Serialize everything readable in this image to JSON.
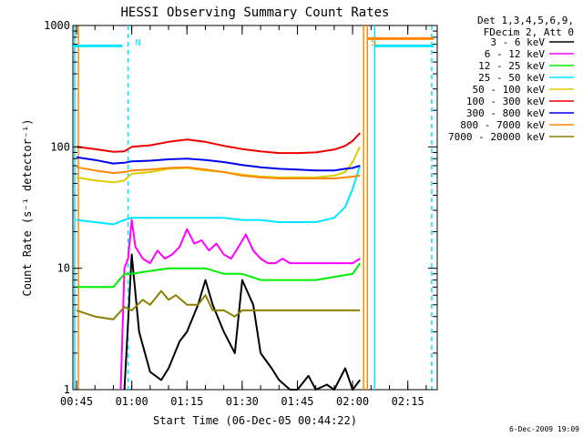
{
  "chart_data": {
    "type": "line",
    "title": "HESSI Observing Summary Count Rates",
    "xlabel": "Start Time (06-Dec-05 00:44:22)",
    "ylabel": "Count Rate (s⁻¹ detector⁻¹)",
    "x_scale": "time",
    "y_scale": "log",
    "xlim": [
      "00:44",
      "02:23"
    ],
    "ylim": [
      1,
      1000
    ],
    "x_ticks": [
      "00:45",
      "01:00",
      "01:15",
      "01:30",
      "01:45",
      "02:00",
      "02:15"
    ],
    "y_ticks": [
      "1",
      "10",
      "100",
      "1000"
    ],
    "legend_header": [
      "Det 1,3,4,5,6,9,",
      "FDecim 2, Att 0"
    ],
    "legend_position": "outside-right",
    "markers": [
      {
        "label": "N",
        "time": "00:59",
        "color": "#00e6ff"
      },
      {
        "label": "S",
        "time": "02:03",
        "color": "#ff8800"
      }
    ],
    "vertical_lines": [
      {
        "time": "00:44.5",
        "color": "#00e6ff",
        "style": "solid"
      },
      {
        "time": "00:45.5",
        "color": "#ff8800",
        "style": "solid"
      },
      {
        "time": "00:59",
        "color": "#00e6ff",
        "style": "dashed"
      },
      {
        "time": "02:03",
        "color": "#ff8800",
        "style": "solid"
      },
      {
        "time": "02:04",
        "color": "#ff8800",
        "style": "solid"
      },
      {
        "time": "02:06",
        "color": "#00e6ff",
        "style": "solid"
      },
      {
        "time": "02:21.5",
        "color": "#00e6ff",
        "style": "dashed"
      }
    ],
    "flag_segments": [
      {
        "color": "#00e6ff",
        "y": 680,
        "x": [
          "00:44",
          "00:57.5"
        ]
      },
      {
        "color": "#ff8800",
        "y": 780,
        "x": [
          "02:04",
          "02:22"
        ]
      },
      {
        "color": "#00e6ff",
        "y": 680,
        "x": [
          "02:06",
          "02:22"
        ]
      }
    ],
    "series": [
      {
        "name": "3 - 6 keV",
        "color": "#000000",
        "x": [
          "00:58",
          "01:00",
          "01:02",
          "01:05",
          "01:08",
          "01:10",
          "01:13",
          "01:15",
          "01:18",
          "01:20",
          "01:22",
          "01:25",
          "01:28",
          "01:30",
          "01:33",
          "01:35",
          "01:38",
          "01:40",
          "01:43",
          "01:45",
          "01:48",
          "01:50",
          "01:53",
          "01:55",
          "01:58",
          "02:00",
          "02:02"
        ],
        "values": [
          1.0,
          13,
          3,
          1.4,
          1.2,
          1.5,
          2.5,
          3,
          5,
          8,
          5,
          3,
          2,
          8,
          5,
          2,
          1.5,
          1.2,
          1.0,
          1.0,
          1.3,
          1.0,
          1.1,
          1.0,
          1.5,
          1.0,
          1.2
        ]
      },
      {
        "name": "6 - 12 keV",
        "color": "#ff00ff",
        "x": [
          "00:57",
          "00:58",
          "00:59",
          "01:00",
          "01:01",
          "01:03",
          "01:05",
          "01:07",
          "01:09",
          "01:11",
          "01:13",
          "01:15",
          "01:17",
          "01:19",
          "01:21",
          "01:23",
          "01:25",
          "01:27",
          "01:29",
          "01:31",
          "01:33",
          "01:35",
          "01:37",
          "01:39",
          "01:41",
          "01:43",
          "01:45",
          "01:48",
          "01:52",
          "01:56",
          "02:00",
          "02:02"
        ],
        "values": [
          1.0,
          10,
          12,
          25,
          15,
          12,
          11,
          14,
          12,
          13,
          15,
          21,
          16,
          17,
          14,
          16,
          13,
          12,
          15,
          19,
          14,
          12,
          11,
          11,
          12,
          11,
          11,
          11,
          11,
          11,
          11,
          12
        ]
      },
      {
        "name": "12 - 25 keV",
        "color": "#00ee00",
        "x": [
          "00:45",
          "00:50",
          "00:55",
          "00:58",
          "01:00",
          "01:05",
          "01:10",
          "01:15",
          "01:20",
          "01:25",
          "01:30",
          "01:35",
          "01:40",
          "01:45",
          "01:50",
          "01:55",
          "02:00",
          "02:02"
        ],
        "values": [
          7,
          7,
          7,
          9,
          9,
          9.5,
          10,
          10,
          10,
          9,
          9,
          8,
          8,
          8,
          8,
          8.5,
          9,
          11
        ]
      },
      {
        "name": "25 - 50 keV",
        "color": "#00e6ff",
        "x": [
          "00:45",
          "00:50",
          "00:55",
          "00:58",
          "01:00",
          "01:05",
          "01:10",
          "01:15",
          "01:20",
          "01:25",
          "01:30",
          "01:35",
          "01:40",
          "01:45",
          "01:50",
          "01:55",
          "01:58",
          "02:00",
          "02:02"
        ],
        "values": [
          25,
          24,
          23,
          25,
          26,
          26,
          26,
          26,
          26,
          26,
          25,
          25,
          24,
          24,
          24,
          26,
          32,
          45,
          70
        ]
      },
      {
        "name": "50 - 100 keV",
        "color": "#ddcc00",
        "x": [
          "00:45",
          "00:50",
          "00:55",
          "00:58",
          "01:00",
          "01:05",
          "01:10",
          "01:15",
          "01:20",
          "01:25",
          "01:30",
          "01:35",
          "01:40",
          "01:45",
          "01:50",
          "01:55",
          "01:58",
          "02:00",
          "02:02"
        ],
        "values": [
          56,
          53,
          51,
          53,
          60,
          62,
          66,
          67,
          64,
          62,
          59,
          57,
          56,
          56,
          56,
          58,
          62,
          75,
          100
        ]
      },
      {
        "name": "100 - 300 keV",
        "color": "#ee0000",
        "x": [
          "00:45",
          "00:50",
          "00:55",
          "00:58",
          "01:00",
          "01:05",
          "01:10",
          "01:15",
          "01:20",
          "01:25",
          "01:30",
          "01:35",
          "01:40",
          "01:45",
          "01:50",
          "01:55",
          "01:58",
          "02:00",
          "02:02"
        ],
        "values": [
          100,
          96,
          91,
          92,
          100,
          103,
          110,
          115,
          110,
          102,
          96,
          92,
          89,
          89,
          90,
          95,
          102,
          112,
          130
        ]
      },
      {
        "name": "300 - 800 keV",
        "color": "#0000ee",
        "x": [
          "00:45",
          "00:50",
          "00:55",
          "00:58",
          "01:00",
          "01:05",
          "01:10",
          "01:15",
          "01:20",
          "01:25",
          "01:30",
          "01:35",
          "01:40",
          "01:45",
          "01:50",
          "01:55",
          "01:58",
          "02:00",
          "02:02"
        ],
        "values": [
          82,
          78,
          73,
          74,
          76,
          77,
          79,
          80,
          78,
          75,
          71,
          68,
          66,
          65,
          64,
          64,
          66,
          67,
          70
        ]
      },
      {
        "name": "800 - 7000 keV",
        "color": "#ff8800",
        "x": [
          "00:45",
          "00:50",
          "00:55",
          "00:58",
          "01:00",
          "01:05",
          "01:10",
          "01:15",
          "01:20",
          "01:25",
          "01:30",
          "01:35",
          "01:40",
          "01:45",
          "01:50",
          "01:55",
          "01:58",
          "02:00",
          "02:02"
        ],
        "values": [
          68,
          64,
          61,
          62,
          64,
          65,
          67,
          68,
          65,
          62,
          58,
          56,
          55,
          55,
          55,
          55,
          56,
          57,
          58
        ]
      },
      {
        "name": "7000 - 20000 keV",
        "color": "#8b8000",
        "x": [
          "00:45",
          "00:50",
          "00:55",
          "00:58",
          "01:00",
          "01:03",
          "01:05",
          "01:08",
          "01:10",
          "01:12",
          "01:15",
          "01:18",
          "01:20",
          "01:22",
          "01:25",
          "01:28",
          "01:30",
          "01:35",
          "01:40",
          "01:45",
          "01:50",
          "01:55",
          "02:00",
          "02:02"
        ],
        "values": [
          4.5,
          4.0,
          3.8,
          4.8,
          4.5,
          5.5,
          5.0,
          6.5,
          5.5,
          6.0,
          5.0,
          5.0,
          6.0,
          4.5,
          4.5,
          4.0,
          4.5,
          4.5,
          4.5,
          4.5,
          4.5,
          4.5,
          4.5,
          4.5
        ]
      }
    ]
  },
  "footer": {
    "timestamp": "6-Dec-2009 19:09"
  }
}
